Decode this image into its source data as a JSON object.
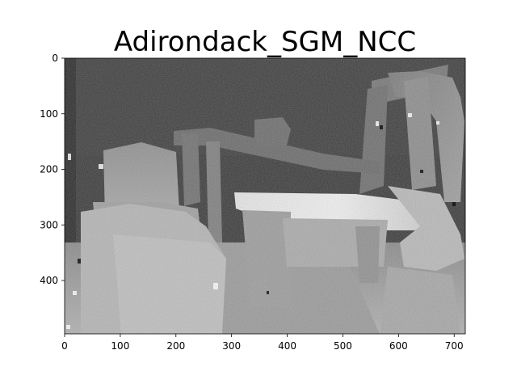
{
  "figure": {
    "title": "Adirondack_SGM_NCC"
  },
  "image_panel": {
    "description_type": "grayscale disparity map",
    "colormap": "gray",
    "x_axis": {
      "ticks": [
        "0",
        "100",
        "200",
        "300",
        "400",
        "500",
        "600",
        "700"
      ],
      "range": [
        0,
        720
      ]
    },
    "y_axis": {
      "ticks": [
        "0",
        "100",
        "200",
        "300",
        "400"
      ],
      "range": [
        0,
        496
      ],
      "inverted": true
    }
  },
  "colors": {
    "background": "#ffffff",
    "frame": "#000000"
  }
}
